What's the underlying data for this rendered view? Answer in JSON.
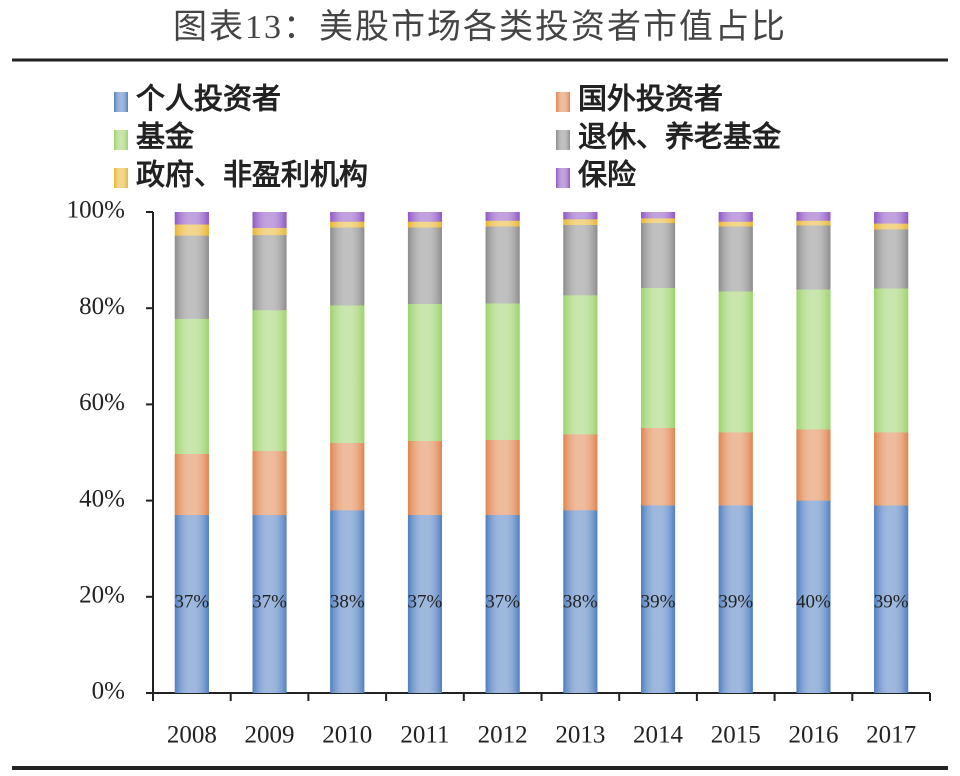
{
  "chart_data": {
    "type": "stacked-bar",
    "title": "图表13：美股市场各类投资者市值占比",
    "categories": [
      "2008",
      "2009",
      "2010",
      "2011",
      "2012",
      "2013",
      "2014",
      "2015",
      "2016",
      "2017"
    ],
    "series": [
      {
        "name": "个人投资者",
        "color": "#4f7ec1",
        "values": [
          37,
          37,
          38,
          37,
          37,
          38,
          39,
          39,
          40,
          39
        ],
        "value_labels": [
          "37%",
          "37%",
          "38%",
          "37%",
          "37%",
          "38%",
          "39%",
          "39%",
          "40%",
          "39%"
        ]
      },
      {
        "name": "国外投资者",
        "color": "#e0844c",
        "values": [
          12.7,
          13.3,
          14,
          15.4,
          15.6,
          15.8,
          16.1,
          15.2,
          14.8,
          15.2
        ]
      },
      {
        "name": "基金",
        "color": "#9cd26a",
        "values": [
          28.1,
          29.3,
          28.6,
          28.5,
          28.4,
          28.9,
          29.1,
          29.3,
          29.1,
          29.9
        ]
      },
      {
        "name": "退休、养老基金",
        "color": "#8c8c8c",
        "values": [
          17.3,
          15.6,
          16.2,
          15.9,
          16,
          14.6,
          13.5,
          13.5,
          13.3,
          12.3
        ]
      },
      {
        "name": "政府、非盈利机构",
        "color": "#e8b530",
        "values": [
          2.3,
          1.5,
          1.2,
          1.2,
          1.2,
          1.2,
          1,
          1,
          1,
          1.2
        ]
      },
      {
        "name": "保险",
        "color": "#8e55c4",
        "values": [
          2.6,
          3.3,
          2,
          2,
          1.8,
          1.5,
          1.3,
          2,
          1.8,
          2.4
        ]
      }
    ],
    "ylim": [
      0,
      100
    ],
    "yticks": [
      {
        "value": 0,
        "label": "0%"
      },
      {
        "value": 20,
        "label": "20%"
      },
      {
        "value": 40,
        "label": "40%"
      },
      {
        "value": 60,
        "label": "60%"
      },
      {
        "value": 80,
        "label": "80%"
      },
      {
        "value": 100,
        "label": "100%"
      }
    ],
    "legend": "top"
  }
}
